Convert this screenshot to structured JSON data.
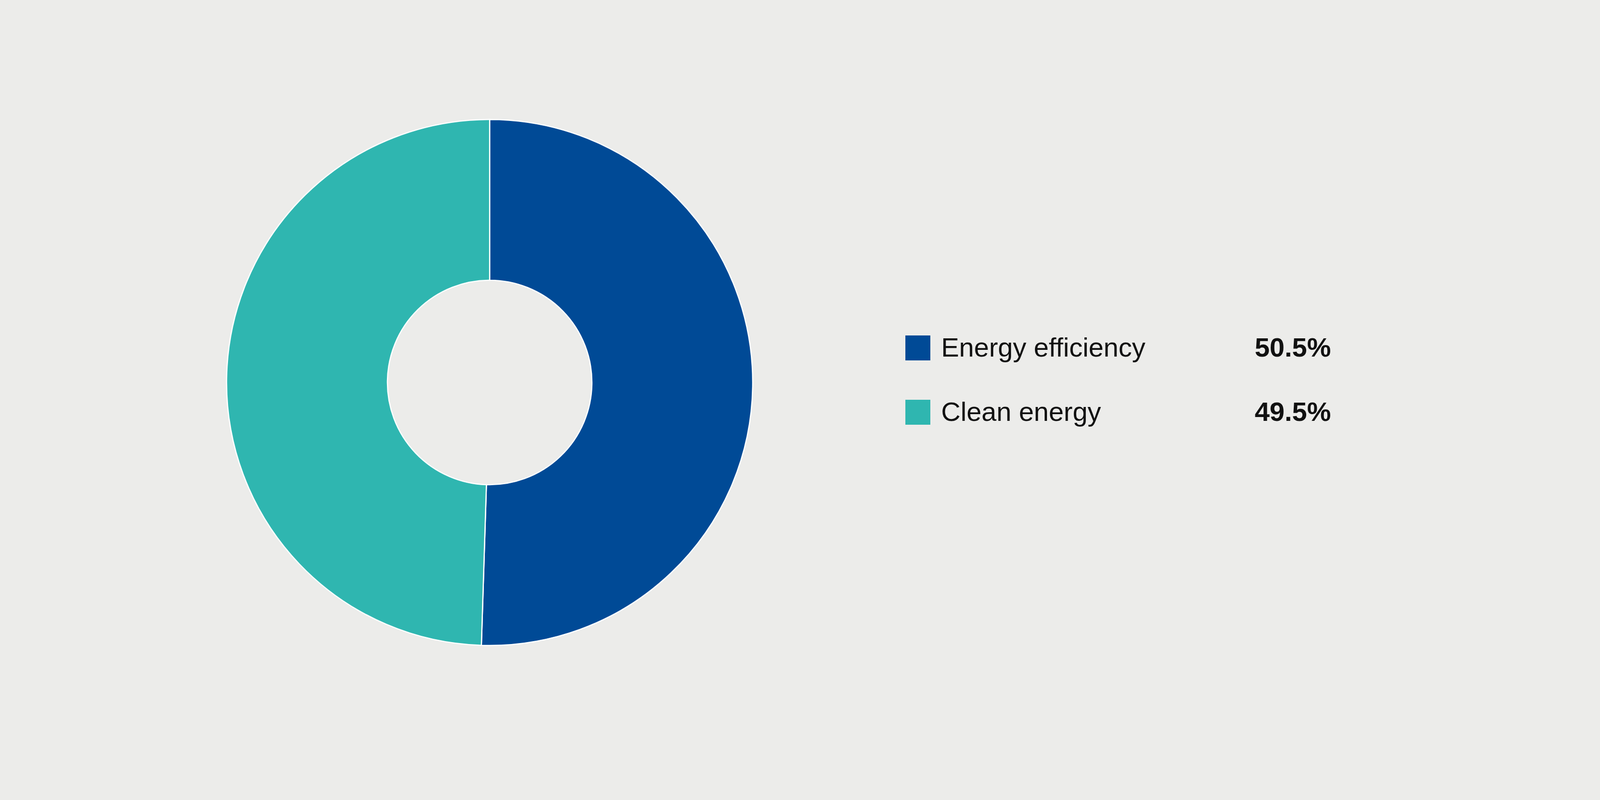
{
  "chart_data": {
    "type": "donut",
    "categories": [
      "Energy efficiency",
      "Clean energy"
    ],
    "values": [
      50.5,
      49.5
    ],
    "value_labels": [
      "50.5%",
      "49.5%"
    ],
    "colors": [
      "#004a96",
      "#2fb6b0"
    ],
    "legend": "right"
  }
}
